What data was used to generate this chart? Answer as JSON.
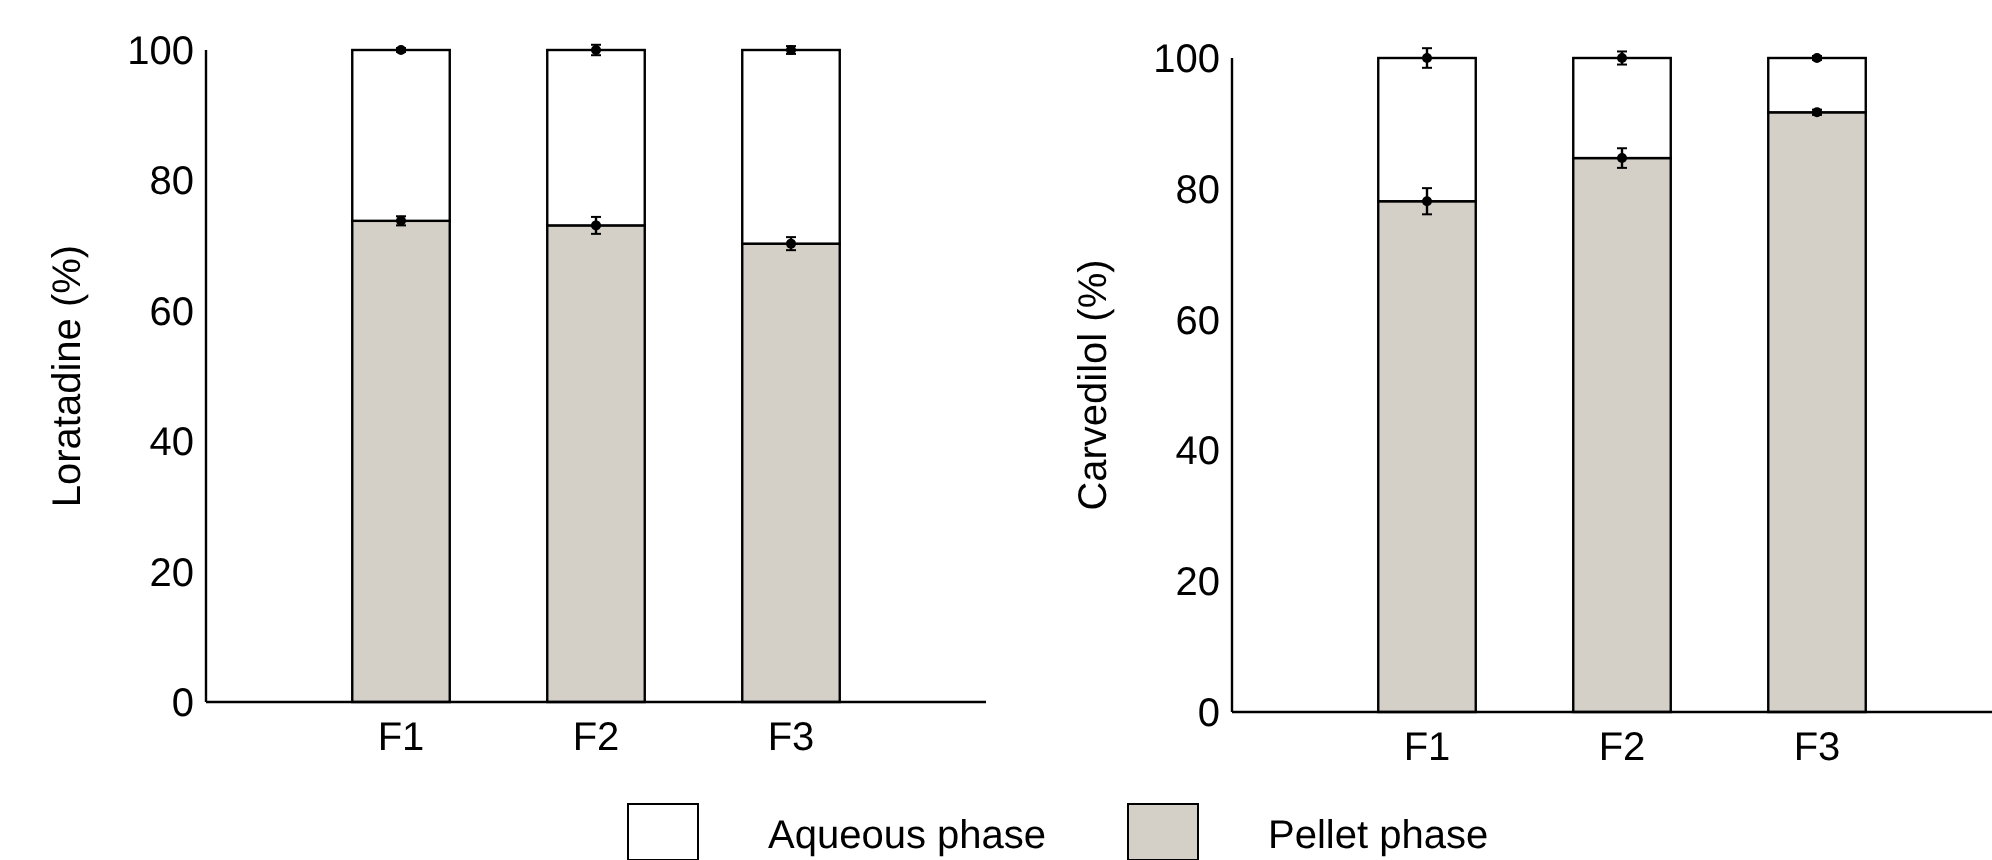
{
  "chart_data": [
    {
      "type": "bar",
      "stacked": true,
      "ylabel": "Loratadine (%)",
      "categories": [
        "F1",
        "F2",
        "F3"
      ],
      "ylim": [
        0,
        100
      ],
      "yticks": [
        0,
        20,
        40,
        60,
        80,
        100
      ],
      "legend": "bottom",
      "series": [
        {
          "name": "Pellet phase",
          "color": "#d4d0c8",
          "values": [
            73.8,
            73.1,
            70.3
          ]
        },
        {
          "name": "Aqueous phase",
          "color": "#ffffff",
          "values": [
            26.2,
            26.9,
            29.7
          ]
        },
        {
          "type": "scatter",
          "marker": "circle",
          "color": "#000000",
          "x": [
            "F1",
            "F2",
            "F3"
          ],
          "values": [
            73.8,
            73.1,
            70.3
          ],
          "errors": [
            0.7,
            1.3,
            1.0
          ]
        },
        {
          "type": "scatter",
          "marker": "circle",
          "color": "#000000",
          "x": [
            "F1",
            "F2",
            "F3"
          ],
          "values": [
            100,
            100,
            100
          ],
          "errors": [
            0.3,
            0.8,
            0.6
          ]
        }
      ]
    },
    {
      "type": "bar",
      "stacked": true,
      "ylabel": "Carvedilol (%)",
      "categories": [
        "F1",
        "F2",
        "F3"
      ],
      "ylim": [
        0,
        100
      ],
      "yticks": [
        0,
        20,
        40,
        60,
        80,
        100
      ],
      "series": [
        {
          "color": "#d4d0c8",
          "values": [
            78.1,
            84.7,
            91.7
          ]
        },
        {
          "color": "#ffffff",
          "values": [
            21.9,
            15.3,
            8.3
          ]
        },
        {
          "type": "scatter",
          "marker": "circle",
          "color": "#000000",
          "x": [
            "F1",
            "F2",
            "F3"
          ],
          "values": [
            78.1,
            84.7,
            91.7
          ],
          "errors": [
            2.0,
            1.5,
            0.4
          ]
        },
        {
          "type": "scatter",
          "marker": "circle",
          "color": "#000000",
          "x": [
            "F1",
            "F2",
            "F3"
          ],
          "values": [
            100,
            100,
            100
          ],
          "errors": [
            1.5,
            1.0,
            0.3
          ]
        }
      ]
    }
  ]
}
